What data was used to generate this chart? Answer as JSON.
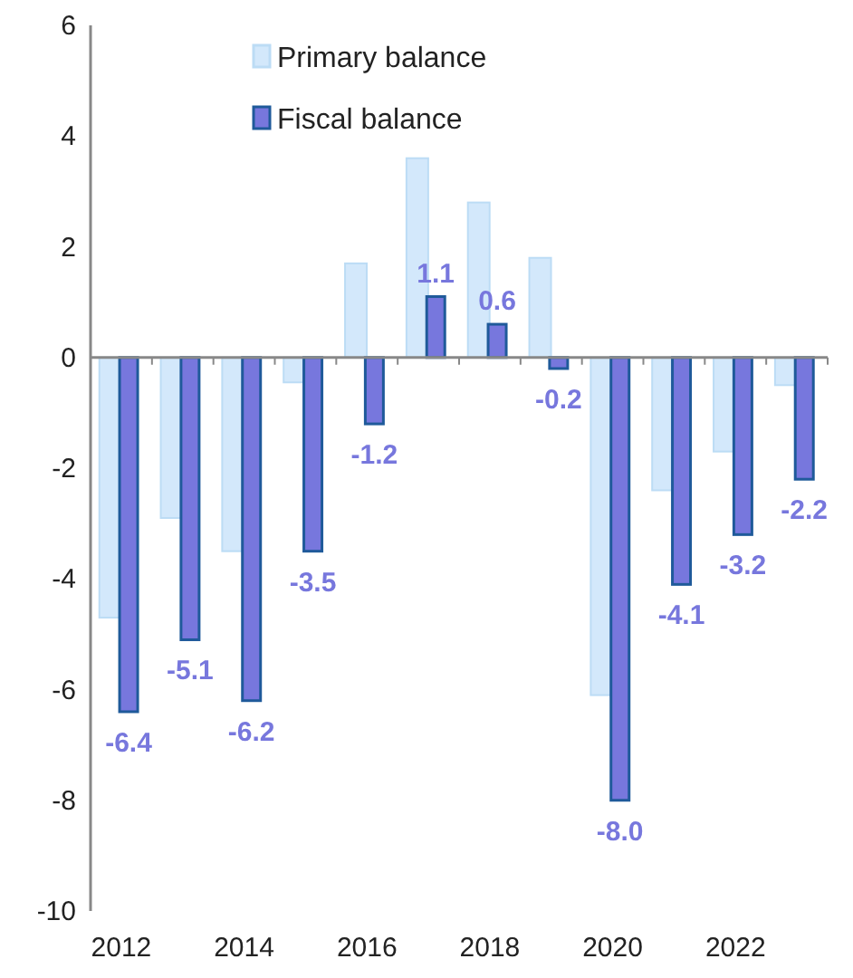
{
  "chart_data": {
    "type": "bar",
    "categories": [
      "2012",
      null,
      "2014",
      null,
      "2016",
      null,
      "2018",
      null,
      "2020",
      null,
      "2022",
      null
    ],
    "series": [
      {
        "name": "Primary balance",
        "color": "#d3e8fb",
        "values": [
          -4.7,
          -2.9,
          -3.5,
          -0.45,
          1.7,
          3.6,
          2.8,
          1.8,
          -6.1,
          -2.4,
          -1.7,
          -0.5
        ]
      },
      {
        "name": "Fiscal balance",
        "color": "#7777dd",
        "values": [
          -6.4,
          -5.1,
          -6.2,
          -3.5,
          -1.2,
          1.1,
          0.6,
          -0.2,
          -8.0,
          -4.1,
          -3.2,
          -2.2
        ],
        "value_labels": [
          "-6.4",
          "-5.1",
          "-6.2",
          "-3.5",
          "-1.2",
          "1.1",
          "0.6",
          "-0.2",
          "-8.0",
          "-4.1",
          "-3.2",
          "-2.2"
        ]
      }
    ],
    "ylim": [
      -10,
      6
    ],
    "yticks": [
      -10,
      -8,
      -6,
      -4,
      -2,
      0,
      2,
      4,
      6
    ],
    "legend": "top"
  }
}
